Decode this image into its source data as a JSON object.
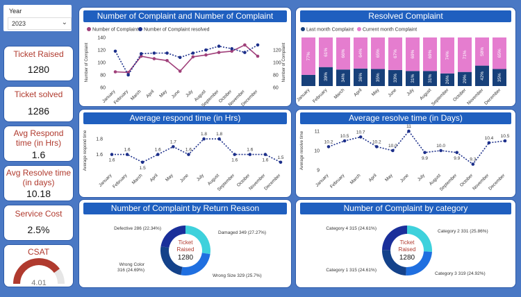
{
  "filter": {
    "label": "Year",
    "value": "2023"
  },
  "kpis": {
    "ticket_raised": {
      "title": "Ticket Raised",
      "value": "1280"
    },
    "ticket_solved": {
      "title": "Ticket solved",
      "value": "1286"
    },
    "avg_respond": {
      "title": "Avg Respond time (in Hrs)",
      "value": "1.6"
    },
    "avg_resolve": {
      "title": "Avg Resolve time (in days)",
      "value": "10.18"
    },
    "service_cost": {
      "title": "Service Cost",
      "value": "2.5%"
    },
    "csat": {
      "title": "CSAT",
      "value": "4.01",
      "fraction": 0.8
    }
  },
  "months_full": [
    "January",
    "February",
    "March",
    "April",
    "May",
    "June",
    "July",
    "August",
    "September",
    "October",
    "November",
    "December"
  ],
  "chart_data": [
    {
      "type": "line",
      "title": "Number of Complaint and Number of Complaint resolved",
      "ylabel": "Number of Complaint",
      "ylabel2": "Number of Complaint",
      "ylim": [
        60,
        140
      ],
      "yticks": [
        60,
        80,
        100,
        120,
        140
      ],
      "ylim2": [
        60,
        140
      ],
      "yticks2": [
        60,
        80,
        100,
        120
      ],
      "categories": [
        "January",
        "February",
        "March",
        "April",
        "May",
        "June",
        "July",
        "August",
        "September",
        "October",
        "November",
        "December"
      ],
      "series": [
        {
          "name": "Number of Complaint",
          "color": "#a0407a",
          "values": [
            85,
            84,
            110,
            106,
            103,
            86,
            109,
            112,
            116,
            118,
            128,
            110
          ]
        },
        {
          "name": "Number of Complaint resolved",
          "color": "#1c2f8a",
          "values": [
            118,
            80,
            114,
            115,
            115,
            108,
            115,
            120,
            126,
            122,
            116,
            128
          ]
        }
      ]
    },
    {
      "type": "bar",
      "stacked": true,
      "title": "Resolved Complaint",
      "categories": [
        "January",
        "February",
        "March",
        "April",
        "May",
        "June",
        "July",
        "August",
        "September",
        "October",
        "November",
        "December"
      ],
      "series": [
        {
          "name": "Last month Complaint",
          "color": "#17407a",
          "values": [
            23,
            39,
            34,
            36,
            35,
            33,
            31,
            31,
            26,
            29,
            42,
            35
          ],
          "labels": [
            "",
            "39%",
            "34%",
            "36%",
            "35%",
            "33%",
            "31%",
            "31%",
            "26%",
            "29%",
            "42%",
            "35%"
          ]
        },
        {
          "name": "Current month Complaint",
          "color": "#e57dcf",
          "values": [
            77,
            61,
            66,
            64,
            65,
            67,
            69,
            69,
            74,
            71,
            58,
            65
          ],
          "labels": [
            "77%",
            "61%",
            "66%",
            "64%",
            "65%",
            "67%",
            "69%",
            "69%",
            "74%",
            "71%",
            "58%",
            "65%"
          ]
        }
      ]
    },
    {
      "type": "line",
      "title": "Average respond time (in Hrs)",
      "ylabel": "Average respond time",
      "ylim": [
        1.4,
        1.9
      ],
      "yticks": [
        1.6,
        1.8
      ],
      "categories": [
        "January",
        "February",
        "March",
        "April",
        "May",
        "June",
        "July",
        "August",
        "September",
        "October",
        "November",
        "December"
      ],
      "values": [
        1.6,
        1.6,
        1.5,
        1.6,
        1.7,
        1.6,
        1.8,
        1.8,
        1.6,
        1.6,
        1.6,
        1.5
      ],
      "labels": [
        "1.6",
        "1.6",
        "1.5",
        "1.6",
        "1.7",
        "1.6",
        "1.8",
        "1.8",
        "1.6",
        "1.6",
        "1.6",
        "1.5"
      ],
      "color": "#1c2f8a"
    },
    {
      "type": "line",
      "title": "Average resolve time (in Days)",
      "ylabel": "Average resolve time",
      "ylim": [
        9,
        11
      ],
      "yticks": [
        9,
        10,
        11
      ],
      "categories": [
        "January",
        "February",
        "March",
        "April",
        "May",
        "June",
        "July",
        "August",
        "September",
        "October",
        "November",
        "December"
      ],
      "values": [
        10.2,
        10.5,
        10.7,
        10.2,
        10.0,
        11.0,
        9.9,
        10.0,
        9.9,
        9.3,
        10.4,
        10.5
      ],
      "labels": [
        "10.2",
        "10.5",
        "10.7",
        "10.2",
        "10.0",
        "11",
        "9.9",
        "10.0",
        "9.9",
        "9.3",
        "10.4",
        "10.5"
      ],
      "color": "#1c2f8a"
    },
    {
      "type": "pie",
      "title": "Number of Complaint by Return Reason",
      "center_label": "Ticket Raised",
      "center_value": "1280",
      "slices": [
        {
          "name": "Damaged",
          "value": 349,
          "percent": 27.27,
          "label": "Damaged 349 (27.27%)",
          "color": "#3ed1dc"
        },
        {
          "name": "Wrong Size",
          "value": 329,
          "percent": 25.7,
          "label": "Wrong Size 329 (25.7%)",
          "color": "#1f6fe0"
        },
        {
          "name": "Wrong Color",
          "value": 316,
          "percent": 24.69,
          "label": "Wrong Color 316 (24.69%)",
          "color": "#14428a"
        },
        {
          "name": "Defective",
          "value": 286,
          "percent": 22.34,
          "label": "Defective 286 (22.34%)",
          "color": "#1a2f9a"
        }
      ]
    },
    {
      "type": "pie",
      "title": "Number of Complaint by category",
      "center_label": "Ticket Raised",
      "center_value": "1280",
      "slices": [
        {
          "name": "Category 2",
          "value": 331,
          "percent": 25.86,
          "label": "Category 2 331 (25.86%)",
          "color": "#3ed1dc"
        },
        {
          "name": "Category 3",
          "value": 319,
          "percent": 24.92,
          "label": "Category 3 319 (24.92%)",
          "color": "#1f6fe0"
        },
        {
          "name": "Category 1",
          "value": 315,
          "percent": 24.61,
          "label": "Category 1 315 (24.61%)",
          "color": "#14428a"
        },
        {
          "name": "Category 4",
          "value": 315,
          "percent": 24.61,
          "label": "Category 4 315 (24.61%)",
          "color": "#1a2f9a"
        }
      ]
    }
  ]
}
